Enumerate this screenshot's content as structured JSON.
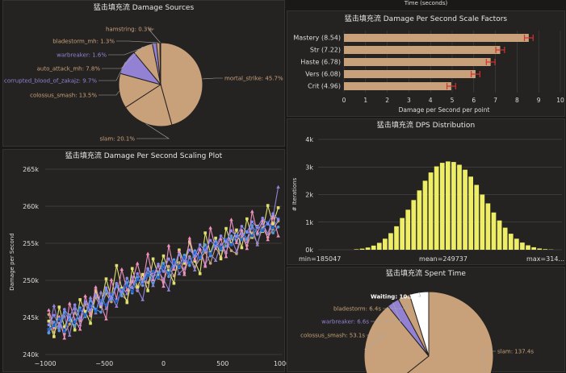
{
  "page": {
    "top_axis_label": "Time (seconds)"
  },
  "colors": {
    "tan": "#c8a07a",
    "purple": "#9381d4",
    "white": "#ffffff",
    "bar_fill": "#c8a07a",
    "error": "#d83030",
    "hist": "#eeee66",
    "series": [
      "#c8a07a",
      "#9381d4",
      "#e0e070",
      "#5599dd",
      "#f090c0",
      "#2266cc",
      "#8888ee"
    ]
  },
  "icons": [],
  "chart_data": [
    {
      "id": "damage_sources",
      "type": "pie",
      "title": "猛击填充流 Damage Sources",
      "slices": [
        {
          "label": "mortal_strike: 45.7%",
          "value": 45.7,
          "color": "#c8a07a"
        },
        {
          "label": "slam: 20.1%",
          "value": 20.1,
          "color": "#c8a07a"
        },
        {
          "label": "colossus_smash: 13.5%",
          "value": 13.5,
          "color": "#c8a07a"
        },
        {
          "label": "corrupted_blood_of_zakajz: 9.7%",
          "value": 9.7,
          "color": "#9381d4"
        },
        {
          "label": "auto_attack_mh: 7.8%",
          "value": 7.8,
          "color": "#c8a07a"
        },
        {
          "label": "warbreaker: 1.6%",
          "value": 1.6,
          "color": "#9381d4"
        },
        {
          "label": "bladestorm_mh: 1.3%",
          "value": 1.3,
          "color": "#c8a07a"
        },
        {
          "label": "hamstring: 0.3%",
          "value": 0.3,
          "color": "#c8a07a"
        }
      ]
    },
    {
      "id": "scale_factors",
      "type": "bar",
      "orientation": "horizontal",
      "title": "猛击填充流 Damage Per Second Scale Factors",
      "categories": [
        "Mastery (8.54)",
        "Str (7.22)",
        "Haste (6.78)",
        "Vers (6.08)",
        "Crit (4.96)"
      ],
      "values": [
        8.54,
        7.22,
        6.78,
        6.08,
        4.96
      ],
      "error": 0.2,
      "xlim": [
        0,
        10
      ],
      "xticks": [
        "0",
        "1",
        "2",
        "3",
        "4",
        "5",
        "6",
        "7",
        "8",
        "9",
        "10"
      ],
      "xlabel": "Damage per Second per point"
    },
    {
      "id": "scaling_plot",
      "type": "line",
      "title": "猛击填充流 Damage Per Second Scaling Plot",
      "ylabel": "Damage per Second",
      "ylim": [
        240000,
        265000
      ],
      "yticks": [
        "240k",
        "245k",
        "250k",
        "255k",
        "260k",
        "265k"
      ],
      "xlim": [
        -1000,
        1000
      ],
      "xticks": [
        "−1000",
        "−500",
        "0",
        "500",
        "1000"
      ],
      "series": [
        {
          "color": "#c8a07a",
          "values": [
            245400,
            243000,
            244200,
            242800,
            244100,
            245600,
            244500,
            246800,
            245200,
            247700,
            246400,
            248200,
            247100,
            249500,
            248000,
            247300,
            249900,
            248600,
            250200,
            249700,
            251100,
            250300,
            249800,
            251900,
            250600,
            252400,
            251000,
            253200,
            251800,
            252900,
            253800,
            252300,
            254500,
            253100,
            255200,
            254000,
            253600,
            255900,
            254700,
            256400,
            255000,
            257100,
            255800,
            256900,
            258000
          ]
        },
        {
          "color": "#9381d4",
          "values": [
            243100,
            246600,
            243600,
            245200,
            242600,
            246200,
            244000,
            245400,
            247700,
            245600,
            248400,
            246200,
            247900,
            246500,
            249100,
            248200,
            250500,
            248800,
            247400,
            250900,
            249300,
            251200,
            250200,
            248700,
            252600,
            250900,
            251600,
            253100,
            251400,
            254300,
            252100,
            253600,
            252700,
            254900,
            253800,
            255700,
            253900,
            256300,
            255200,
            257200,
            254800,
            257700,
            256300,
            258500,
            262600
          ]
        },
        {
          "color": "#e0e070",
          "values": [
            244500,
            242400,
            246400,
            243700,
            245300,
            243300,
            247400,
            245800,
            244200,
            248600,
            246500,
            250200,
            247700,
            252000,
            248900,
            247000,
            251600,
            249100,
            250800,
            248600,
            252900,
            250700,
            253300,
            251300,
            249600,
            254100,
            252300,
            255200,
            252600,
            250900,
            256400,
            253700,
            255700,
            252900,
            257000,
            254900,
            256800,
            254400,
            258300,
            255800,
            257300,
            256600,
            260100,
            257600,
            259800
          ]
        },
        {
          "color": "#5599dd",
          "values": [
            242900,
            244400,
            243200,
            245700,
            244600,
            243900,
            246300,
            245100,
            247300,
            246100,
            245700,
            248700,
            247400,
            249200,
            247900,
            249700,
            248300,
            250400,
            249300,
            251500,
            249600,
            251000,
            252300,
            250500,
            252800,
            251700,
            253400,
            252000,
            254000,
            253000,
            254800,
            253300,
            255300,
            254100,
            254600,
            256000,
            255300,
            256700,
            255600,
            257400,
            256200,
            256900,
            257800,
            256400,
            257200
          ]
        },
        {
          "color": "#f090c0",
          "values": [
            246000,
            243600,
            245100,
            242200,
            246900,
            244700,
            243400,
            247900,
            245400,
            249100,
            246700,
            244800,
            250100,
            247500,
            251500,
            248700,
            249800,
            252300,
            249500,
            253600,
            250100,
            252100,
            249200,
            254700,
            251500,
            253900,
            250800,
            255700,
            252800,
            254200,
            251900,
            257100,
            254300,
            255600,
            253200,
            258200,
            255100,
            256800,
            254300,
            259300,
            256400,
            258100,
            255500,
            258700,
            256000
          ]
        },
        {
          "color": "#2266cc",
          "values": [
            243400,
            243900,
            244800,
            243100,
            245200,
            244400,
            246000,
            245300,
            246600,
            245800,
            247300,
            246700,
            248100,
            247200,
            248700,
            249300,
            248500,
            250100,
            249600,
            250700,
            251200,
            250400,
            251800,
            251000,
            252500,
            251800,
            253100,
            252400,
            253700,
            253000,
            254300,
            253600,
            254900,
            254300,
            255500,
            254800,
            256100,
            255500,
            256600,
            256000,
            257200,
            256700,
            257800,
            257100,
            258300
          ]
        },
        {
          "color": "#8888ee",
          "values": [
            244000,
            245300,
            243800,
            246100,
            245000,
            246700,
            244900,
            247100,
            246000,
            248000,
            246800,
            249000,
            247600,
            249600,
            248400,
            250300,
            249000,
            250900,
            249800,
            251600,
            250500,
            252200,
            251200,
            252900,
            251900,
            253500,
            252600,
            254100,
            253300,
            254800,
            254000,
            255400,
            254600,
            256000,
            255200,
            256700,
            255900,
            257300,
            256500,
            257900,
            257100,
            258400,
            257600,
            259000,
            258200
          ]
        }
      ]
    },
    {
      "id": "dps_distribution",
      "type": "bar",
      "title": "猛击填充流 DPS Distribution",
      "ylabel": "# Iterations",
      "ylim": [
        0,
        4000
      ],
      "yticks": [
        "0k",
        "1k",
        "2k",
        "3k",
        "4k"
      ],
      "min_label": "min=185047",
      "mean_label": "mean=249737",
      "max_label": "max=314...",
      "values": [
        18,
        40,
        80,
        150,
        250,
        400,
        600,
        850,
        1150,
        1450,
        1800,
        2150,
        2500,
        2800,
        3020,
        3150,
        3200,
        3180,
        3080,
        2900,
        2650,
        2350,
        2000,
        1680,
        1350,
        1060,
        800,
        580,
        400,
        260,
        160,
        90,
        45,
        22,
        10
      ]
    },
    {
      "id": "spent_time",
      "type": "pie",
      "title": "猛击填充流 Spent Time",
      "slices": [
        {
          "label": "slam: 137.4s",
          "value": 137.4,
          "color": "#c8a07a"
        },
        {
          "label": "colossus_smash: 53.1s",
          "value": 53.1,
          "color": "#c8a07a"
        },
        {
          "label": "warbreaker: 6.6s",
          "value": 6.6,
          "color": "#9381d4"
        },
        {
          "label": "bladestorm: 6.4s",
          "value": 6.4,
          "color": "#c8a07a"
        },
        {
          "label": "Waiting: 10.3s",
          "value": 10.3,
          "color": "#ffffff"
        }
      ]
    }
  ]
}
